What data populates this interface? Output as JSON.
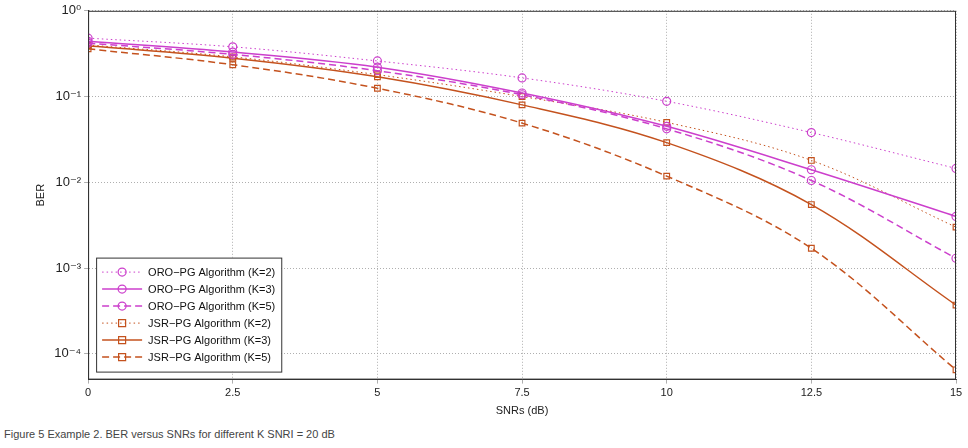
{
  "chart_data": {
    "type": "line",
    "caption": "Figure 5 Example 2. BER versus SNRs for different K SNRI = 20 dB",
    "x_label": "SNRs (dB)",
    "y_label": "BER",
    "log": "y",
    "grid": true,
    "legend": "lower left",
    "x": [
      0,
      2.5,
      5,
      7.5,
      10,
      12.5,
      15
    ],
    "xlim": [
      0,
      15
    ],
    "xticks": [
      0,
      2.5,
      5,
      7.5,
      10,
      12.5,
      15
    ],
    "ylim": [
      5e-05,
      1
    ],
    "yticks": [
      {
        "value": 0.0001,
        "label": "10⁻⁴"
      },
      {
        "value": 0.001,
        "label": "10⁻³"
      },
      {
        "value": 0.01,
        "label": "10⁻²"
      },
      {
        "value": 0.1,
        "label": "10⁻¹"
      },
      {
        "value": 1,
        "label": "10⁰"
      }
    ],
    "series": [
      {
        "name": "ORO−PG Algorithm (K=2)",
        "color": "#cc3fcc",
        "marker": "circle",
        "line_style": "dotted",
        "values": [
          0.48,
          0.38,
          0.26,
          0.165,
          0.088,
          0.038,
          0.0145
        ]
      },
      {
        "name": "ORO−PG Algorithm (K=3)",
        "color": "#cc3fcc",
        "marker": "circle",
        "line_style": "solid",
        "values": [
          0.44,
          0.33,
          0.22,
          0.11,
          0.045,
          0.014,
          0.004
        ]
      },
      {
        "name": "ORO−PG Algorithm (K=5)",
        "color": "#cc3fcc",
        "marker": "circle",
        "line_style": "dashed",
        "values": [
          0.42,
          0.31,
          0.2,
          0.105,
          0.042,
          0.0105,
          0.0013
        ]
      },
      {
        "name": "JSR−PG Algorithm (K=2)",
        "color": "#c4521e",
        "marker": "square",
        "line_style": "dotted",
        "values": [
          0.4,
          0.29,
          0.18,
          0.1,
          0.05,
          0.018,
          0.003
        ]
      },
      {
        "name": "JSR−PG Algorithm (K=3)",
        "color": "#c4521e",
        "marker": "square",
        "line_style": "solid",
        "values": [
          0.39,
          0.28,
          0.17,
          0.08,
          0.029,
          0.0055,
          0.00037
        ]
      },
      {
        "name": "JSR−PG Algorithm (K=5)",
        "color": "#c4521e",
        "marker": "square",
        "line_style": "dashed",
        "values": [
          0.36,
          0.235,
          0.125,
          0.049,
          0.0118,
          0.0017,
          6.5e-05
        ]
      }
    ]
  }
}
